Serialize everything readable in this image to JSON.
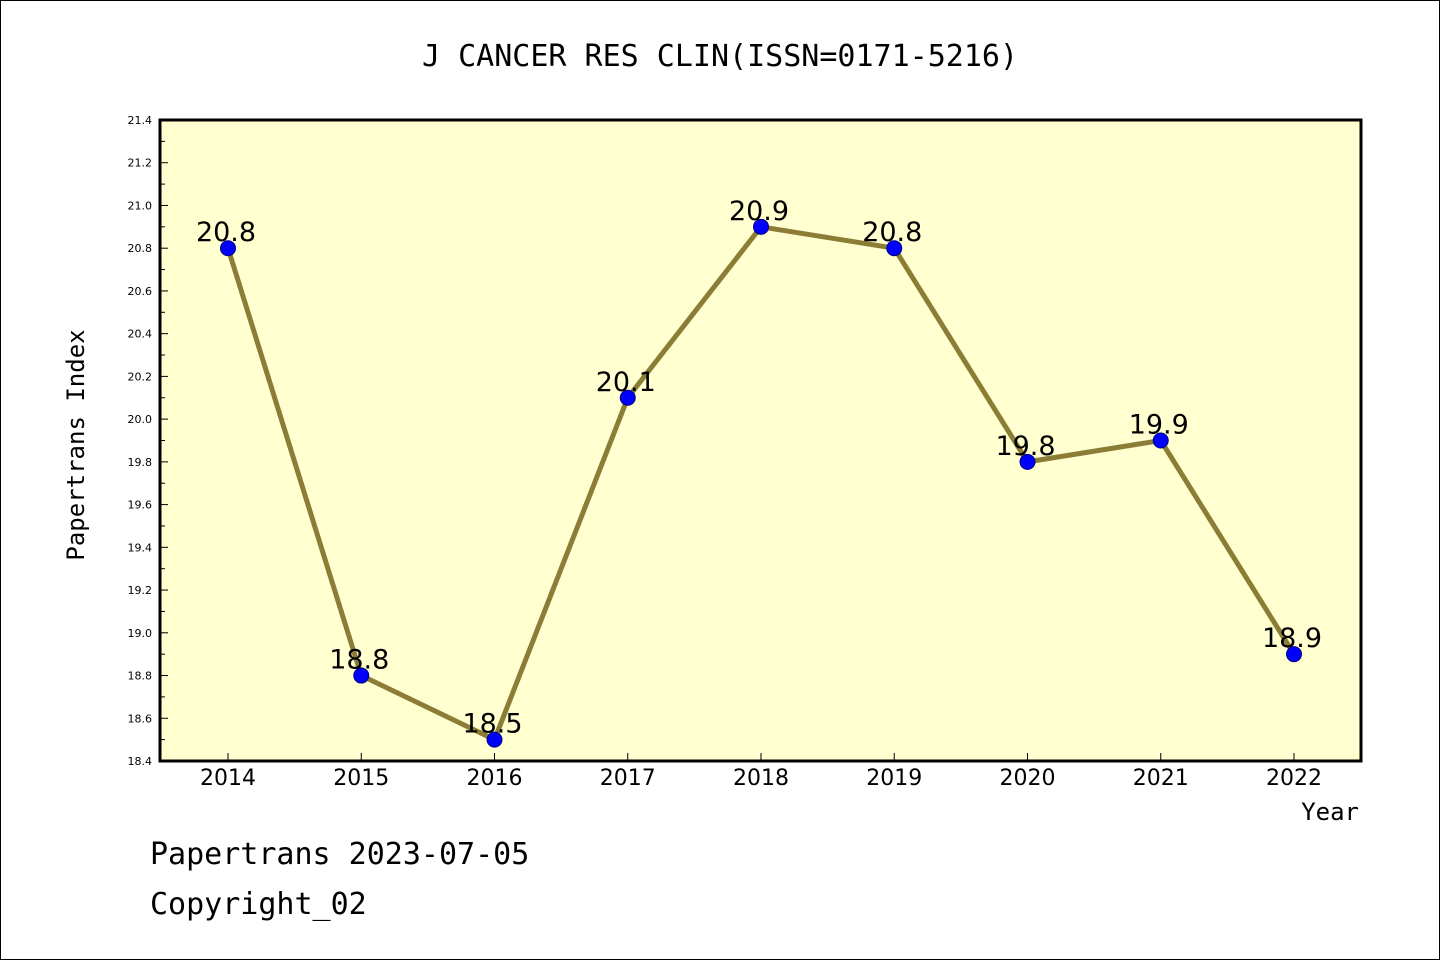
{
  "chart_data": {
    "type": "line",
    "title": "J CANCER RES CLIN(ISSN=0171-5216)",
    "xlabel": "Year",
    "ylabel": "Papertrans Index",
    "categories": [
      "2014",
      "2015",
      "2016",
      "2017",
      "2018",
      "2019",
      "2020",
      "2021",
      "2022"
    ],
    "series": [
      {
        "values": [
          20.8,
          18.8,
          18.5,
          20.1,
          20.9,
          20.8,
          19.8,
          19.9,
          18.9
        ],
        "data_labels": [
          "20.8",
          "18.8",
          "18.5",
          "20.1",
          "20.9",
          "20.8",
          "19.8",
          "19.9",
          "18.9"
        ]
      }
    ],
    "ylim": [
      18.4,
      21.4
    ],
    "yticks": [
      "18.4",
      "18.6",
      "18.8",
      "19.0",
      "19.2",
      "19.4",
      "19.6",
      "19.8",
      "20.0",
      "20.2",
      "20.4",
      "20.6",
      "20.8",
      "21.0",
      "21.2",
      "21.4"
    ],
    "grid": false,
    "colors": {
      "plot_background": "#FFFFD0",
      "line": "#8B7D35",
      "marker": "#0000FF",
      "marker_edge": "#000080"
    }
  },
  "footer": {
    "date_line": "Papertrans 2023-07-05",
    "copyright": "Copyright_02"
  }
}
